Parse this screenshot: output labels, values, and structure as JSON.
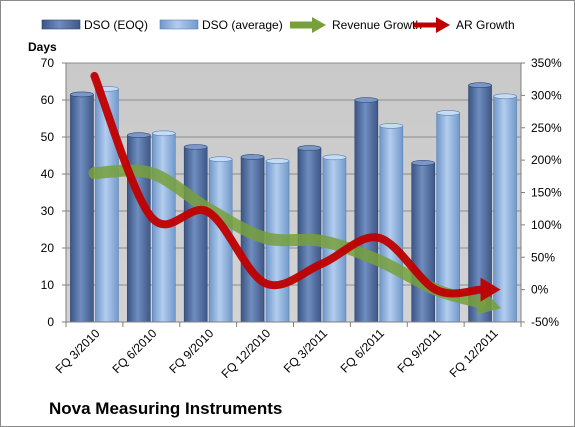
{
  "chart_data": {
    "type": "bar",
    "title": "Nova Measuring Instruments",
    "ylabel": "Days",
    "ylim": [
      0,
      70
    ],
    "yticks": [
      0,
      10,
      20,
      30,
      40,
      50,
      60,
      70
    ],
    "y2lim": [
      -50,
      350
    ],
    "y2ticks": [
      "-50%",
      "0%",
      "50%",
      "100%",
      "150%",
      "200%",
      "250%",
      "300%",
      "350%"
    ],
    "y2tick_values": [
      -50,
      0,
      50,
      100,
      150,
      200,
      250,
      300,
      350
    ],
    "categories": [
      "FQ 3/2010",
      "FQ 6/2010",
      "FQ 9/2010",
      "FQ 12/2010",
      "FQ 3/2011",
      "FQ 6/2011",
      "FQ 9/2011",
      "FQ 12/2011"
    ],
    "series": [
      {
        "name": "DSO (EOQ)",
        "kind": "bar",
        "axis": "left",
        "color": "#4f6d9e",
        "values": [
          61.5,
          50.5,
          47.3,
          44.6,
          47.0,
          60.0,
          43.0,
          64.0
        ]
      },
      {
        "name": "DSO (average)",
        "kind": "bar",
        "axis": "left",
        "color": "#8fb4e3",
        "values": [
          63.0,
          51.0,
          44.0,
          43.5,
          44.5,
          53.0,
          56.5,
          61.0
        ]
      },
      {
        "name": "Revenue Growth",
        "kind": "line",
        "axis": "right",
        "color": "#77a03c",
        "values": [
          180,
          180,
          125,
          80,
          75,
          45,
          0,
          -25
        ]
      },
      {
        "name": "AR Growth",
        "kind": "line",
        "axis": "right",
        "color": "#c00000",
        "values": [
          330,
          112,
          120,
          10,
          40,
          80,
          0,
          0
        ]
      }
    ],
    "legend_position": "top",
    "grid": true
  }
}
